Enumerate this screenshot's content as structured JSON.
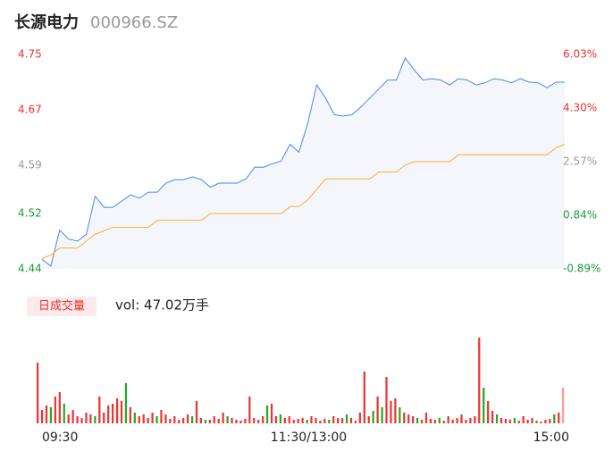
{
  "chart_data": {
    "type": "intraday",
    "title": "长源电力",
    "subtitle": "000966.SZ",
    "legend": "日成交量",
    "volume_summary": "vol: 47.02万手",
    "xlabels": [
      "09:30",
      "11:30/13:00",
      "15:00"
    ],
    "ylim": [
      4.44,
      4.75
    ],
    "yticks": [
      4.75,
      4.67,
      4.59,
      4.52,
      4.44
    ],
    "y2lim": [
      -0.89,
      6.03
    ],
    "y2ticks": [
      {
        "value": 6.03,
        "label": "6.03%"
      },
      {
        "value": 4.3,
        "label": "4.30%"
      },
      {
        "value": 2.57,
        "label": "2.57%"
      },
      {
        "value": 0.84,
        "label": "0.84%"
      },
      {
        "value": -0.89,
        "label": "-0.89%"
      }
    ],
    "tick_colors": [
      "#e8312f",
      "#e8312f",
      "#999999",
      "#1a9c3c",
      "#1a9c3c"
    ],
    "price_color": "#4a86e8",
    "average_color": "#f0b429",
    "price": [
      4.454,
      4.444,
      4.496,
      4.483,
      4.48,
      4.49,
      4.545,
      4.529,
      4.529,
      4.538,
      4.547,
      4.542,
      4.551,
      4.551,
      4.564,
      4.569,
      4.569,
      4.573,
      4.569,
      4.558,
      4.564,
      4.564,
      4.564,
      4.57,
      4.587,
      4.587,
      4.592,
      4.596,
      4.62,
      4.609,
      4.651,
      4.706,
      4.687,
      4.663,
      4.661,
      4.663,
      4.674,
      4.687,
      4.7,
      4.713,
      4.713,
      4.745,
      4.728,
      4.713,
      4.715,
      4.713,
      4.706,
      4.715,
      4.713,
      4.706,
      4.709,
      4.715,
      4.713,
      4.709,
      4.715,
      4.71,
      4.709,
      4.702,
      4.71,
      4.71
    ],
    "average": [
      4.455,
      4.46,
      4.47,
      4.47,
      4.47,
      4.48,
      4.49,
      4.495,
      4.5,
      4.5,
      4.5,
      4.5,
      4.5,
      4.51,
      4.51,
      4.51,
      4.51,
      4.51,
      4.51,
      4.52,
      4.52,
      4.52,
      4.52,
      4.52,
      4.52,
      4.52,
      4.52,
      4.52,
      4.53,
      4.53,
      4.54,
      4.555,
      4.57,
      4.57,
      4.57,
      4.57,
      4.57,
      4.57,
      4.58,
      4.58,
      4.58,
      4.59,
      4.595,
      4.595,
      4.595,
      4.595,
      4.595,
      4.605,
      4.605,
      4.605,
      4.605,
      4.605,
      4.605,
      4.605,
      4.605,
      4.605,
      4.605,
      4.605,
      4.615,
      4.62
    ],
    "volume": [
      68,
      15,
      20,
      18,
      30,
      35,
      22,
      10,
      15,
      8,
      6,
      12,
      10,
      8,
      30,
      12,
      20,
      22,
      28,
      25,
      45,
      18,
      12,
      8,
      10,
      6,
      12,
      8,
      15,
      10,
      5,
      8,
      4,
      6,
      10,
      8,
      25,
      6,
      4,
      4,
      8,
      5,
      12,
      8,
      6,
      4,
      3,
      5,
      30,
      6,
      4,
      8,
      20,
      22,
      8,
      10,
      6,
      8,
      4,
      5,
      6,
      4,
      8,
      6,
      3,
      5,
      4,
      8,
      6,
      6,
      10,
      6,
      3,
      12,
      58,
      8,
      14,
      30,
      18,
      52,
      25,
      28,
      18,
      12,
      10,
      8,
      6,
      4,
      12,
      5,
      4,
      6,
      3,
      8,
      4,
      6,
      10,
      4,
      6,
      8,
      96,
      40,
      25,
      14,
      10,
      6,
      5,
      4,
      6,
      3,
      8,
      4,
      6,
      3,
      2,
      4,
      5,
      10,
      12,
      40
    ],
    "volume_colors": [
      "#e33",
      "#e33",
      "#e33",
      "#2a2",
      "#e33",
      "#e33",
      "#2a2",
      "#e33",
      "#e33",
      "#e33",
      "#e33",
      "#e33",
      "#e33",
      "#2a2",
      "#e33",
      "#e33",
      "#e33",
      "#e33",
      "#e33",
      "#e33",
      "#2a2",
      "#e33",
      "#2a2",
      "#e33",
      "#e33",
      "#e33",
      "#e33",
      "#2a2",
      "#e33",
      "#e33",
      "#e33",
      "#e33",
      "#e33",
      "#e33",
      "#e33",
      "#2a2",
      "#e33",
      "#e33",
      "#2a2",
      "#e33",
      "#e33",
      "#e33",
      "#e33",
      "#2a2",
      "#e33",
      "#e33",
      "#e33",
      "#e33",
      "#e33",
      "#e33",
      "#e33",
      "#e33",
      "#2a2",
      "#e33",
      "#e33",
      "#2a2",
      "#e33",
      "#e33",
      "#e33",
      "#e33",
      "#e33",
      "#2a2",
      "#e33",
      "#e33",
      "#e33",
      "#e33",
      "#2a2",
      "#e33",
      "#e33",
      "#e33",
      "#2a2",
      "#e33",
      "#e33",
      "#e33",
      "#e33",
      "#e33",
      "#2a2",
      "#e33",
      "#2a2",
      "#e33",
      "#e33",
      "#e33",
      "#2a2",
      "#e33",
      "#e33",
      "#e33",
      "#2a2",
      "#e33",
      "#e33",
      "#e33",
      "#e33",
      "#2a2",
      "#e33",
      "#e33",
      "#e33",
      "#e33",
      "#e33",
      "#e33",
      "#e33",
      "#e33",
      "#e33",
      "#2a2",
      "#e33",
      "#e33",
      "#2a2",
      "#e33",
      "#e33",
      "#e33",
      "#2a2",
      "#e33",
      "#e33",
      "#e33",
      "#e33",
      "#2a2",
      "#e33",
      "#e33",
      "#e33",
      "#2a2",
      "#e33",
      "#f99"
    ]
  }
}
